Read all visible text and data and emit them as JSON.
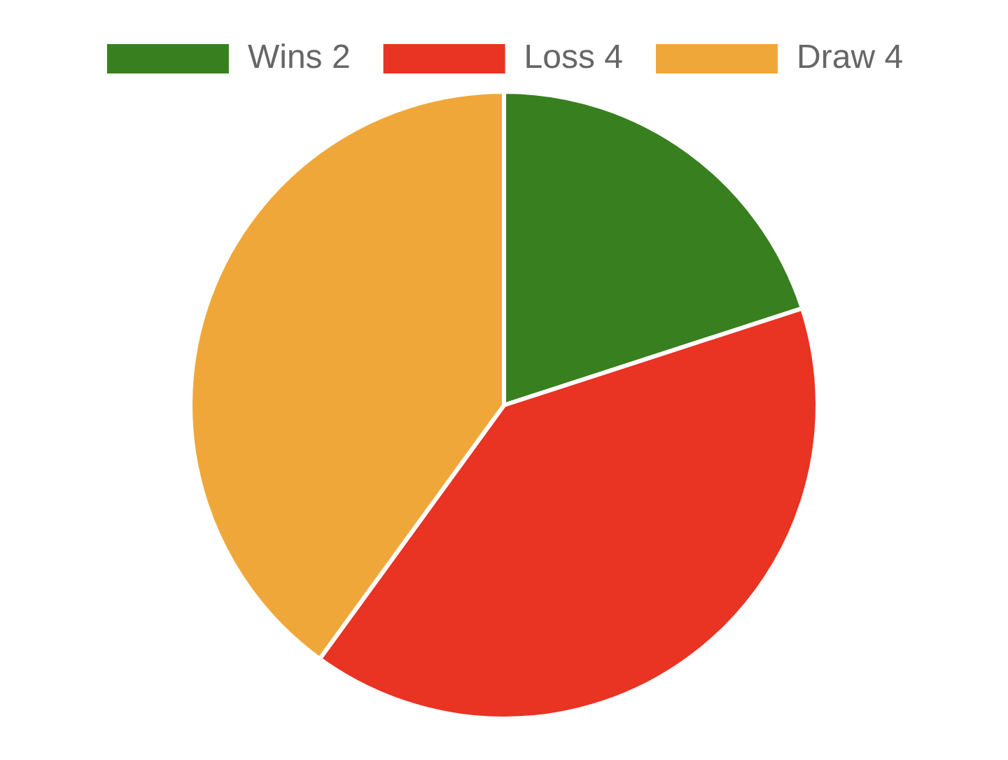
{
  "chart_data": {
    "type": "pie",
    "categories": [
      "Wins 2",
      "Loss 4",
      "Draw 4"
    ],
    "values": [
      2,
      4,
      4
    ],
    "colors": [
      "#38801f",
      "#e93323",
      "#f0a73a"
    ],
    "legend": "top"
  }
}
